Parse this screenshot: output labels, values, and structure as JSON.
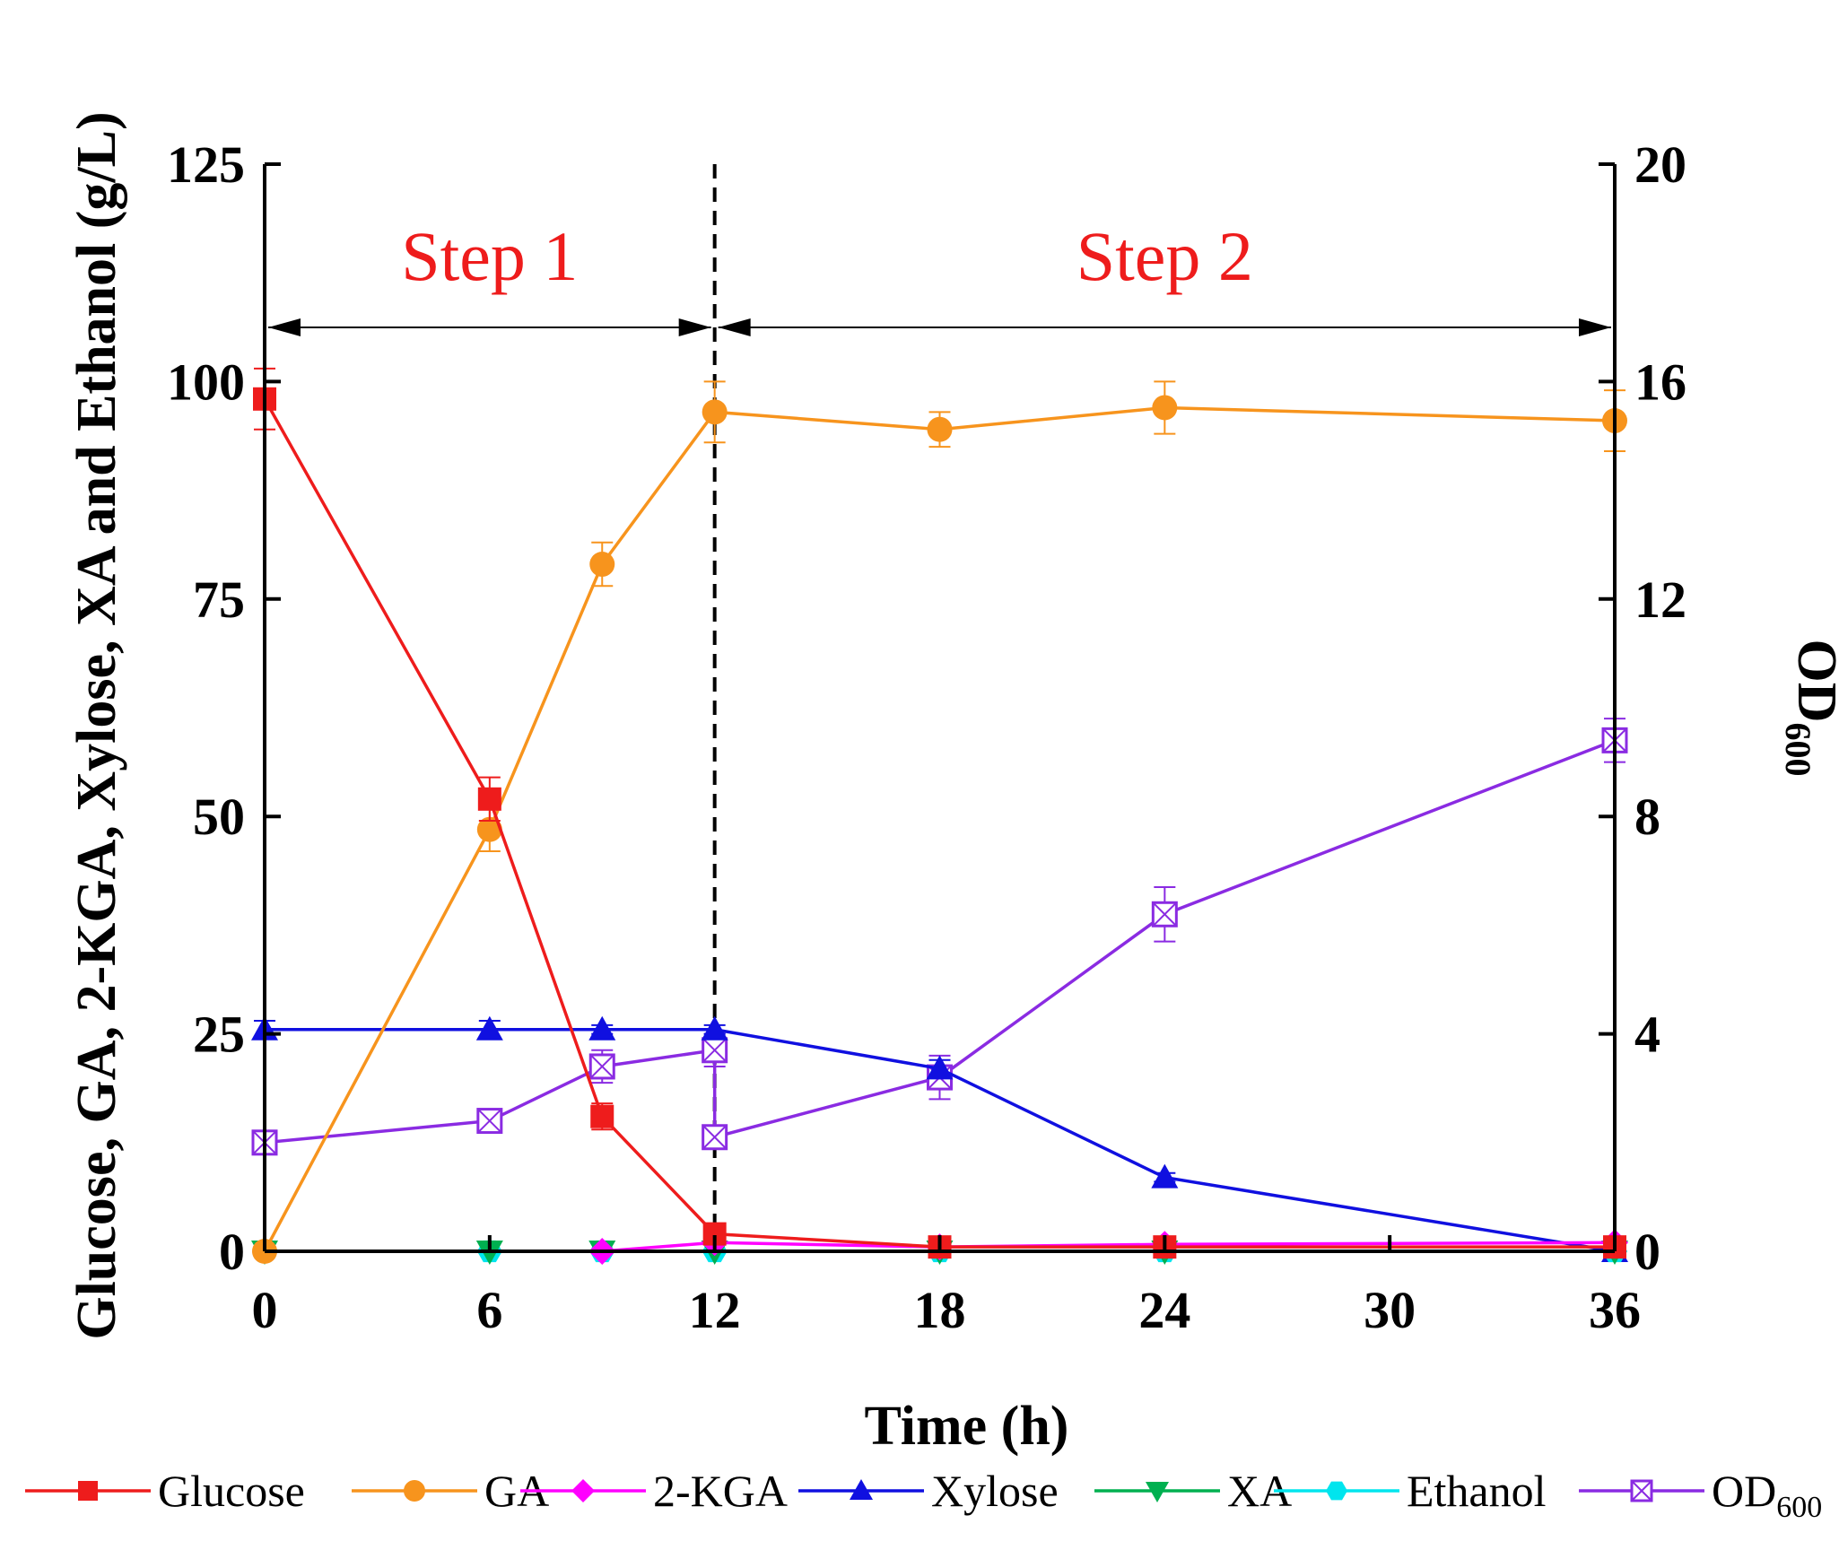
{
  "chart_data": {
    "type": "line",
    "xlabel": "Time (h)",
    "ylabel": "Glucose, GA, 2-KGA, Xylose, XA and Ethanol (g/L)",
    "y2label_main": "OD",
    "y2label_sub": "600",
    "xlim": [
      0,
      36
    ],
    "xticks": [
      "0",
      "6",
      "12",
      "18",
      "24",
      "30",
      "36"
    ],
    "xtick_values": [
      0,
      6,
      12,
      18,
      24,
      30,
      36
    ],
    "ylim": [
      0,
      125
    ],
    "yticks": [
      "0",
      "25",
      "50",
      "75",
      "100",
      "125"
    ],
    "ytick_values": [
      0,
      25,
      50,
      75,
      100,
      125
    ],
    "y2lim": [
      0,
      20
    ],
    "y2ticks": [
      "0",
      "4",
      "8",
      "12",
      "16",
      "20"
    ],
    "y2tick_values": [
      0,
      4,
      8,
      12,
      16,
      20
    ],
    "step_divider_x": 12,
    "annotations": [
      {
        "text": "Step 1",
        "from_x": 0,
        "to_x": 12
      },
      {
        "text": "Step 2",
        "from_x": 12,
        "to_x": 36
      }
    ],
    "series": [
      {
        "name": "Glucose",
        "color": "#ee1c1c",
        "marker": "square",
        "axis": "left",
        "x": [
          0,
          6,
          9,
          12,
          18,
          24,
          36
        ],
        "y": [
          98,
          52,
          15.5,
          2,
          0.5,
          0.5,
          0.5
        ],
        "err": [
          3.5,
          2.5,
          1.5,
          0.5,
          0.3,
          0.3,
          0.3
        ]
      },
      {
        "name": "GA",
        "color": "#f7941d",
        "marker": "circle",
        "axis": "left",
        "x": [
          0,
          6,
          9,
          12,
          18,
          24,
          36
        ],
        "y": [
          0,
          48.5,
          79,
          96.5,
          94.5,
          97,
          95.5
        ],
        "err": [
          0.5,
          2.5,
          2.5,
          3.5,
          2,
          3,
          3.5
        ]
      },
      {
        "name": "2-KGA",
        "color": "#ff00ff",
        "marker": "diamond",
        "axis": "left",
        "x": [
          9,
          12,
          18,
          24,
          36
        ],
        "y": [
          0,
          1,
          0.5,
          0.8,
          1
        ],
        "err": [
          0,
          0,
          0,
          0,
          0
        ]
      },
      {
        "name": "Xylose",
        "color": "#1010e0",
        "marker": "triangle-up",
        "axis": "left",
        "x": [
          0,
          6,
          9,
          12,
          18,
          24,
          36
        ],
        "y": [
          25.5,
          25.5,
          25.5,
          25.5,
          21,
          8.5,
          0
        ],
        "err": [
          1,
          1,
          0.5,
          0.5,
          1,
          0.5,
          0.3
        ]
      },
      {
        "name": "XA",
        "color": "#00b050",
        "marker": "triangle-down",
        "axis": "left",
        "x": [
          0,
          6,
          9,
          12,
          18,
          24,
          36
        ],
        "y": [
          0,
          0,
          0,
          0,
          0,
          0,
          0
        ],
        "err": [
          0,
          0,
          0,
          0,
          0,
          0,
          0
        ]
      },
      {
        "name": "Ethanol",
        "color": "#00e5ee",
        "marker": "hexagon",
        "axis": "left",
        "x": [
          0,
          6,
          9,
          12,
          18,
          24,
          36
        ],
        "y": [
          0,
          0,
          0,
          0,
          0,
          0,
          0
        ],
        "err": [
          0,
          0,
          0,
          0,
          0,
          0,
          0
        ]
      },
      {
        "name": "OD600",
        "color": "#8a2be2",
        "marker": "crossed-square",
        "axis": "right",
        "x": [
          0,
          6,
          9,
          12,
          12,
          18,
          24,
          36
        ],
        "y": [
          2.0,
          2.4,
          3.4,
          3.7,
          2.1,
          3.2,
          6.2,
          9.4
        ],
        "err": [
          0.2,
          0.1,
          0.3,
          0.3,
          0.15,
          0.4,
          0.5,
          0.4
        ]
      }
    ],
    "legend": {
      "placement": "bottom",
      "entries": [
        {
          "label": "Glucose",
          "color": "#ee1c1c",
          "marker": "square"
        },
        {
          "label": "GA",
          "color": "#f7941d",
          "marker": "circle"
        },
        {
          "label": "2-KGA",
          "color": "#ff00ff",
          "marker": "diamond"
        },
        {
          "label": "Xylose",
          "color": "#1010e0",
          "marker": "triangle-up"
        },
        {
          "label": "XA",
          "color": "#00b050",
          "marker": "triangle-down"
        },
        {
          "label": "Ethanol",
          "color": "#00e5ee",
          "marker": "hexagon"
        },
        {
          "label": "OD",
          "sub": "600",
          "color": "#8a2be2",
          "marker": "crossed-square"
        }
      ]
    }
  }
}
